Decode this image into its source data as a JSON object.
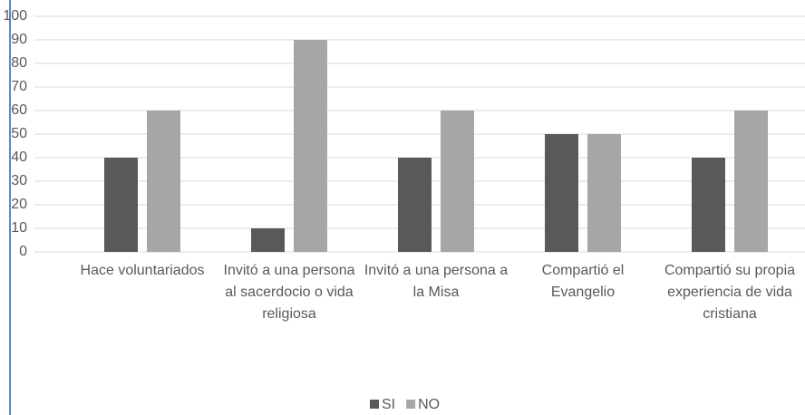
{
  "chart_data": {
    "type": "bar",
    "categories": [
      "Hace voluntariados",
      "Invitó  a una persona al sacerdocio o vida religiosa",
      "Invitó  a una persona a la Misa",
      "Compartió el Evangelio",
      "Compartió su propia experiencia de vida cristiana"
    ],
    "series": [
      {
        "name": "SI",
        "color": "#595959",
        "values": [
          40,
          10,
          40,
          50,
          40
        ]
      },
      {
        "name": "NO",
        "color": "#a6a6a6",
        "values": [
          60,
          90,
          60,
          50,
          60
        ]
      }
    ],
    "ylim": [
      0,
      100
    ],
    "yticks": [
      0,
      10,
      20,
      30,
      40,
      50,
      60,
      70,
      80,
      90,
      100
    ],
    "grid": true,
    "legend": "bottom"
  }
}
